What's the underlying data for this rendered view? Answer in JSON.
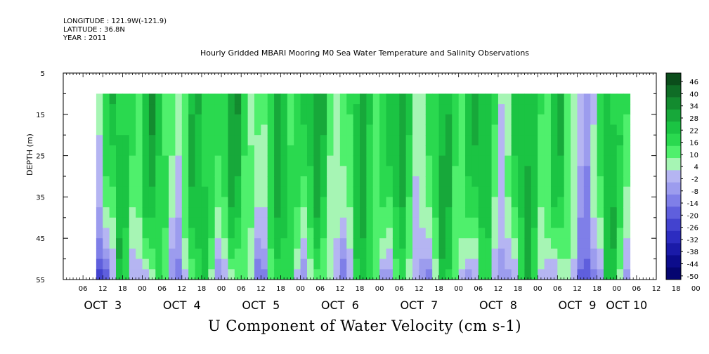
{
  "header": {
    "longitude": "LONGITUDE : 121.9W(-121.9)",
    "latitude": "LATITUDE : 36.8N",
    "year": "YEAR : 2011"
  },
  "chart_data": {
    "type": "heatmap",
    "title": "Hourly Gridded MBARI Mooring M0 Sea Water Temperature and Salinity Observations",
    "xlabel": "U Component of Water Velocity (cm s-1)",
    "ylabel": "DEPTH (m)",
    "ylim": [
      55,
      5
    ],
    "y_ticks": [
      "5",
      "15",
      "25",
      "35",
      "45",
      "55"
    ],
    "data_depth_range": [
      10,
      55
    ],
    "x_hour_ticks": [
      "06",
      "12",
      "18",
      "00",
      "06",
      "12",
      "18",
      "00",
      "06",
      "12",
      "18",
      "00",
      "06",
      "12",
      "18",
      "00",
      "06",
      "12",
      "18",
      "00",
      "06",
      "12",
      "18",
      "00",
      "06",
      "12",
      "18",
      "00",
      "06",
      "12",
      "18",
      "00"
    ],
    "x_day_labels": [
      "OCT  3",
      "OCT  4",
      "OCT  5",
      "OCT  6",
      "OCT  7",
      "OCT  8",
      "OCT  9",
      "OCT 10"
    ],
    "data_start": "OCT 3 10:00",
    "data_end": "OCT 10 04:00",
    "colorbar": {
      "levels": [
        "46",
        "40",
        "34",
        "28",
        "22",
        "16",
        "10",
        "4",
        "-2",
        "-8",
        "-14",
        "-20",
        "-26",
        "-32",
        "-38",
        "-44",
        "-50"
      ],
      "colors": [
        "#0b4d1b",
        "#0f6d26",
        "#138b2f",
        "#17a83a",
        "#1bc443",
        "#2ad94f",
        "#4ff06c",
        "#a6f5b4",
        "#b5b5f2",
        "#9c9cee",
        "#7f7fe8",
        "#5f5fdd",
        "#4343cf",
        "#2c2cc0",
        "#1a1aa8",
        "#0c0c8c",
        "#050570"
      ]
    },
    "grid": false,
    "legend": "colorbar-right"
  }
}
